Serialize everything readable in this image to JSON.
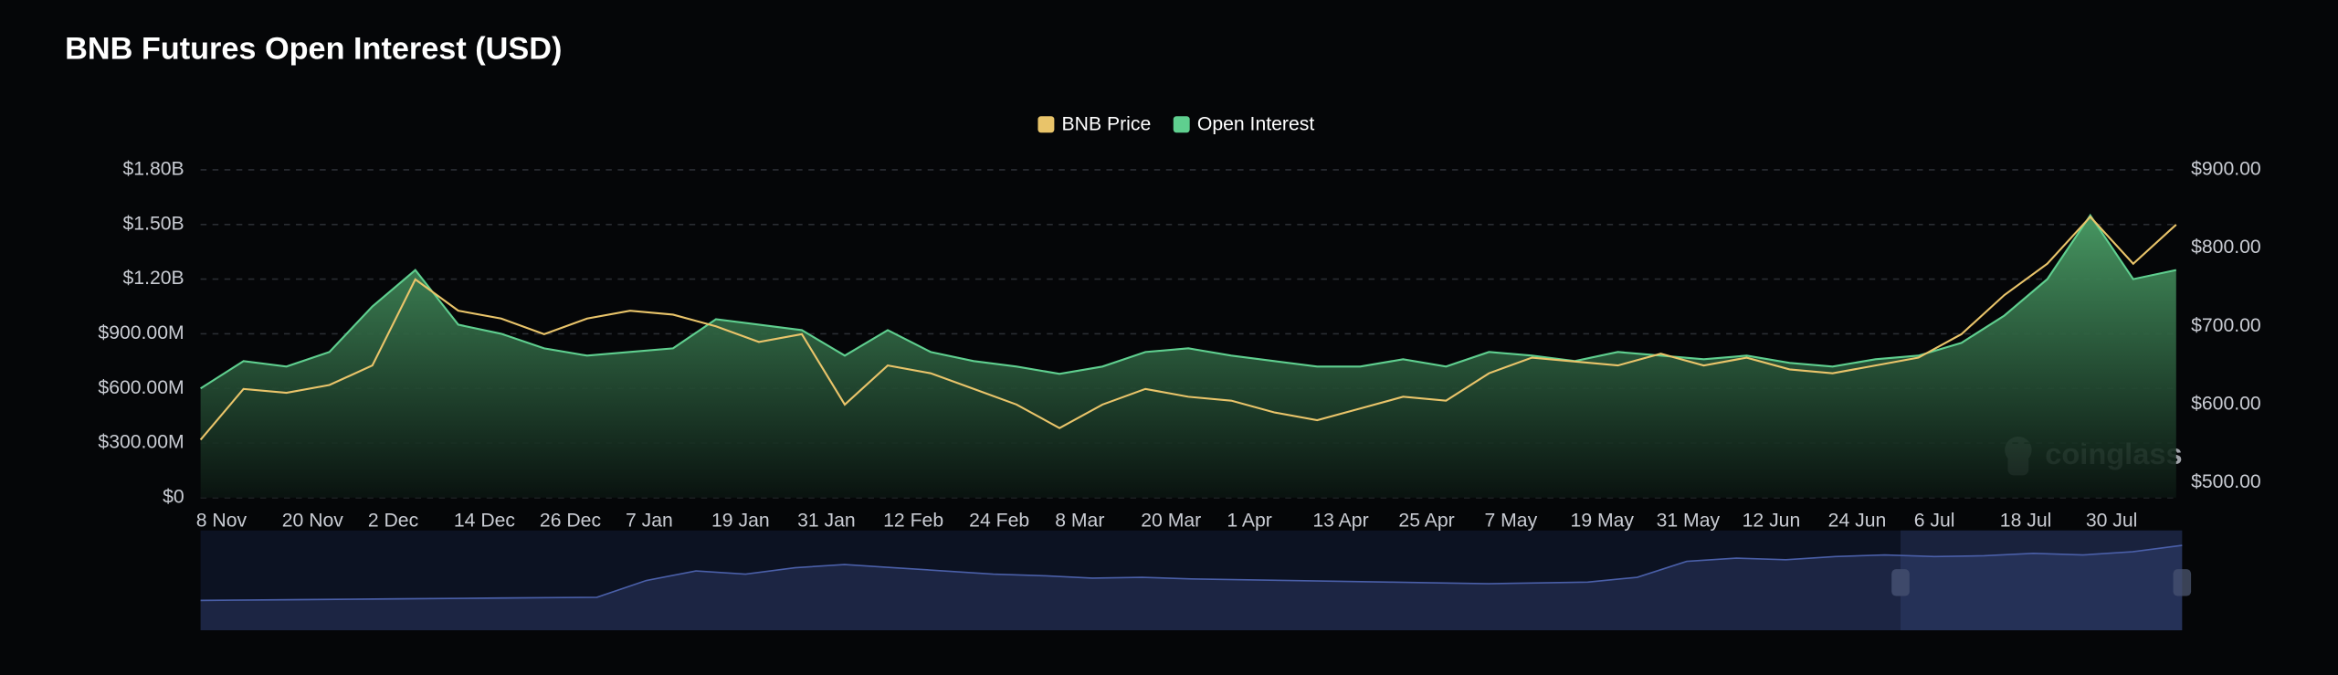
{
  "header": {
    "title": "BNB Futures Open Interest (USD)"
  },
  "watermark": "coinglass",
  "chart_data": {
    "type": "dual-axis-area-line",
    "legend": "top",
    "grid": true,
    "categories": [
      "8 Nov",
      null,
      "20 Nov",
      null,
      "2 Dec",
      null,
      "14 Dec",
      null,
      "26 Dec",
      null,
      "7 Jan",
      null,
      "19 Jan",
      null,
      "31 Jan",
      null,
      "12 Feb",
      null,
      "24 Feb",
      null,
      "8 Mar",
      null,
      "20 Mar",
      null,
      "1 Apr",
      null,
      "13 Apr",
      null,
      "25 Apr",
      null,
      "7 May",
      null,
      "19 May",
      null,
      "31 May",
      null,
      "12 Jun",
      null,
      "24 Jun",
      null,
      "6 Jul",
      null,
      "18 Jul",
      null,
      "30 Jul",
      null,
      null
    ],
    "ylim": [
      0,
      1800000000
    ],
    "yticks": [
      {
        "value": 0,
        "label": "$0"
      },
      {
        "value": 300000000,
        "label": "$300.00M"
      },
      {
        "value": 600000000,
        "label": "$600.00M"
      },
      {
        "value": 900000000,
        "label": "$900.00M"
      },
      {
        "value": 1200000000,
        "label": "$1.20B"
      },
      {
        "value": 1500000000,
        "label": "$1.50B"
      },
      {
        "value": 1800000000,
        "label": "$1.80B"
      }
    ],
    "y2lim": [
      481,
      900
    ],
    "y2ticks": [
      {
        "value": 500,
        "label": "$500.00"
      },
      {
        "value": 600,
        "label": "$600.00"
      },
      {
        "value": 700,
        "label": "$700.00"
      },
      {
        "value": 800,
        "label": "$800.00"
      },
      {
        "value": 900,
        "label": "$900.00"
      }
    ],
    "series": [
      {
        "name": "BNB Price",
        "color": "#e9c46a",
        "axis": "y2",
        "kind": "line",
        "values": [
          555,
          620,
          615,
          625,
          650,
          760,
          720,
          710,
          690,
          710,
          720,
          715,
          700,
          680,
          690,
          600,
          650,
          640,
          620,
          600,
          570,
          600,
          620,
          610,
          605,
          590,
          580,
          595,
          610,
          605,
          640,
          660,
          655,
          650,
          665,
          650,
          660,
          645,
          640,
          650,
          660,
          690,
          740,
          780,
          840,
          780,
          830
        ]
      },
      {
        "name": "Open Interest",
        "color": "#5fcf8f",
        "axis": "y",
        "kind": "area",
        "values": [
          600000000,
          750000000,
          720000000,
          800000000,
          1050000000,
          1250000000,
          950000000,
          900000000,
          820000000,
          780000000,
          800000000,
          820000000,
          980000000,
          950000000,
          920000000,
          780000000,
          920000000,
          800000000,
          750000000,
          720000000,
          680000000,
          720000000,
          800000000,
          820000000,
          780000000,
          750000000,
          720000000,
          720000000,
          760000000,
          720000000,
          800000000,
          780000000,
          750000000,
          800000000,
          780000000,
          760000000,
          780000000,
          740000000,
          720000000,
          760000000,
          780000000,
          850000000,
          1000000000,
          1200000000,
          1550000000,
          1200000000,
          1250000000
        ]
      }
    ],
    "navigator": {
      "color": "#4a5fa8",
      "values": [
        150000000,
        155000000,
        160000000,
        165000000,
        170000000,
        175000000,
        180000000,
        185000000,
        190000000,
        400000000,
        520000000,
        480000000,
        560000000,
        600000000,
        560000000,
        520000000,
        480000000,
        460000000,
        430000000,
        440000000,
        420000000,
        410000000,
        400000000,
        390000000,
        380000000,
        370000000,
        360000000,
        370000000,
        380000000,
        440000000,
        640000000,
        680000000,
        660000000,
        700000000,
        720000000,
        700000000,
        710000000,
        740000000,
        720000000,
        760000000,
        840000000
      ]
    }
  }
}
